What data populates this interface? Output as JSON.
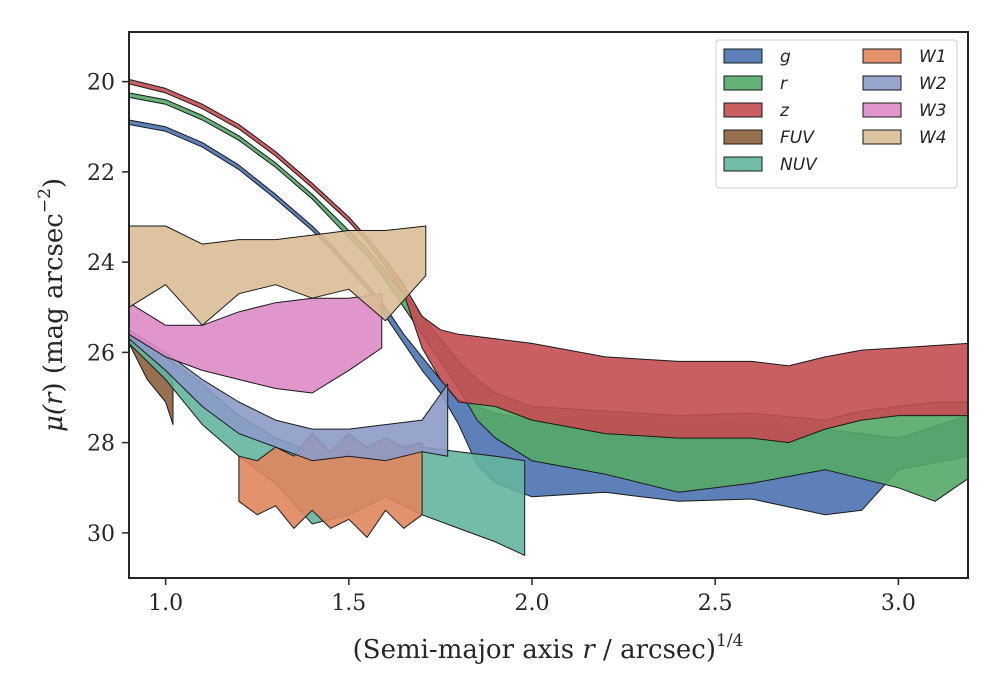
{
  "chart_data": {
    "type": "area",
    "xlabel_pre": "(Semi-major axis ",
    "xlabel_var": "r",
    "xlabel_post": " / arcsec)",
    "xlabel_sup": "1/4",
    "ylabel_pre": "μ(",
    "ylabel_var": "r",
    "ylabel_post": ") (mag arcsec",
    "ylabel_sup": "−2",
    "ylabel_end": ")",
    "xlim": [
      0.9,
      3.19
    ],
    "ylim": [
      31.0,
      18.9
    ],
    "y_inverted": true,
    "xticks": [
      1.0,
      1.5,
      2.0,
      2.5,
      3.0
    ],
    "xtick_labels": [
      "1.0",
      "1.5",
      "2.0",
      "2.5",
      "3.0"
    ],
    "yticks": [
      20,
      22,
      24,
      26,
      28,
      30
    ],
    "ytick_labels": [
      "20",
      "22",
      "24",
      "26",
      "28",
      "30"
    ],
    "grid": false,
    "legend_position": "top-right",
    "legend_columns": 2,
    "series": [
      {
        "name": "g",
        "color": "#4c72b0",
        "x": [
          0.9,
          1.0,
          1.1,
          1.2,
          1.3,
          1.4,
          1.45,
          1.5,
          1.55,
          1.6,
          1.65,
          1.7,
          1.75,
          1.8,
          1.85,
          1.9,
          2.0,
          2.2,
          2.4,
          2.6,
          2.8,
          2.9,
          3.0,
          3.19
        ],
        "y1": [
          20.85,
          21.0,
          21.35,
          21.85,
          22.5,
          23.2,
          23.6,
          24.05,
          24.5,
          25.0,
          25.6,
          26.1,
          26.6,
          27.05,
          27.2,
          27.35,
          27.5,
          27.4,
          27.5,
          27.6,
          27.7,
          27.8,
          27.9,
          27.4
        ],
        "y2": [
          20.95,
          21.1,
          21.45,
          21.95,
          22.6,
          23.3,
          23.7,
          24.15,
          24.6,
          25.2,
          25.8,
          26.4,
          26.9,
          27.6,
          28.5,
          28.9,
          29.2,
          29.1,
          29.3,
          29.25,
          29.6,
          29.5,
          28.6,
          28.3
        ]
      },
      {
        "name": "r",
        "color": "#55a868",
        "x": [
          0.9,
          1.0,
          1.1,
          1.2,
          1.3,
          1.4,
          1.5,
          1.55,
          1.6,
          1.65,
          1.7,
          1.75,
          1.8,
          1.85,
          1.9,
          2.0,
          2.2,
          2.4,
          2.6,
          2.8,
          2.9,
          3.0,
          3.1,
          3.19
        ],
        "y1": [
          20.25,
          20.4,
          20.75,
          21.2,
          21.8,
          22.5,
          23.3,
          23.7,
          24.2,
          24.7,
          25.2,
          25.7,
          26.2,
          26.6,
          26.9,
          27.2,
          27.3,
          27.4,
          27.35,
          27.5,
          27.3,
          27.2,
          27.1,
          27.1
        ],
        "y2": [
          20.35,
          20.5,
          20.85,
          21.3,
          21.9,
          22.6,
          23.45,
          23.85,
          24.4,
          25.0,
          25.6,
          26.2,
          26.8,
          27.5,
          27.9,
          28.4,
          28.7,
          29.1,
          28.9,
          28.6,
          28.8,
          29.0,
          29.3,
          28.8
        ]
      },
      {
        "name": "z",
        "color": "#c44e52",
        "x": [
          0.9,
          1.0,
          1.1,
          1.2,
          1.3,
          1.4,
          1.5,
          1.55,
          1.6,
          1.65,
          1.7,
          1.75,
          1.8,
          1.9,
          2.0,
          2.2,
          2.4,
          2.6,
          2.7,
          2.8,
          2.9,
          3.0,
          3.19
        ],
        "y1": [
          19.95,
          20.15,
          20.5,
          20.95,
          21.55,
          22.25,
          23.0,
          23.45,
          23.95,
          24.5,
          25.2,
          25.5,
          25.6,
          25.7,
          25.8,
          26.1,
          26.2,
          26.2,
          26.3,
          26.1,
          25.95,
          25.9,
          25.8
        ],
        "y2": [
          20.05,
          20.25,
          20.6,
          21.05,
          21.65,
          22.35,
          23.1,
          23.55,
          24.1,
          24.7,
          25.9,
          26.6,
          27.1,
          27.2,
          27.5,
          27.8,
          27.9,
          27.9,
          28.0,
          27.7,
          27.5,
          27.4,
          27.4
        ]
      },
      {
        "name": "FUV",
        "color": "#8c613c",
        "x": [
          0.9,
          0.95,
          1.0,
          1.02
        ],
        "y1": [
          25.6,
          25.9,
          26.3,
          26.7
        ],
        "y2": [
          25.8,
          26.6,
          27.1,
          27.6
        ]
      },
      {
        "name": "NUV",
        "color": "#64b5a0",
        "x": [
          0.9,
          1.0,
          1.1,
          1.2,
          1.3,
          1.4,
          1.5,
          1.6,
          1.7,
          1.8,
          1.9,
          1.98
        ],
        "y1": [
          25.6,
          26.1,
          26.7,
          27.4,
          27.9,
          28.2,
          28.2,
          28.1,
          28.1,
          28.2,
          28.3,
          28.4
        ],
        "y2": [
          25.8,
          26.6,
          27.6,
          28.3,
          28.9,
          29.8,
          29.6,
          29.2,
          29.6,
          29.9,
          30.2,
          30.5
        ]
      },
      {
        "name": "W1",
        "color": "#e0865e",
        "x": [
          1.2,
          1.25,
          1.3,
          1.35,
          1.4,
          1.45,
          1.5,
          1.55,
          1.6,
          1.65,
          1.7
        ],
        "y1": [
          28.3,
          28.4,
          28.1,
          28.3,
          27.8,
          28.2,
          27.8,
          28.1,
          27.9,
          28.1,
          28.0
        ],
        "y2": [
          29.3,
          29.6,
          29.4,
          29.9,
          29.5,
          29.9,
          29.7,
          30.1,
          29.5,
          29.9,
          29.6
        ]
      },
      {
        "name": "W2",
        "color": "#8c9ac6",
        "x": [
          0.9,
          1.0,
          1.1,
          1.2,
          1.3,
          1.4,
          1.5,
          1.6,
          1.7,
          1.77
        ],
        "y1": [
          25.5,
          26.0,
          26.6,
          27.1,
          27.5,
          27.7,
          27.7,
          27.6,
          27.5,
          26.7
        ],
        "y2": [
          25.7,
          26.4,
          27.2,
          27.8,
          28.1,
          28.4,
          28.3,
          28.4,
          28.2,
          28.3
        ]
      },
      {
        "name": "W3",
        "color": "#dd8ac5",
        "x": [
          0.9,
          1.0,
          1.1,
          1.2,
          1.3,
          1.4,
          1.5,
          1.59
        ],
        "y1": [
          24.9,
          25.4,
          25.4,
          25.1,
          24.9,
          24.8,
          24.8,
          24.7
        ],
        "y2": [
          25.6,
          26.1,
          26.4,
          26.6,
          26.8,
          26.9,
          26.4,
          25.9
        ]
      },
      {
        "name": "W4",
        "color": "#d9bd95",
        "x": [
          0.9,
          1.0,
          1.1,
          1.2,
          1.3,
          1.4,
          1.5,
          1.6,
          1.71
        ],
        "y1": [
          23.2,
          23.2,
          23.6,
          23.5,
          23.5,
          23.4,
          23.3,
          23.3,
          23.2
        ],
        "y2": [
          25.0,
          24.5,
          25.4,
          24.7,
          24.5,
          24.8,
          24.6,
          25.3,
          24.3
        ]
      }
    ]
  }
}
